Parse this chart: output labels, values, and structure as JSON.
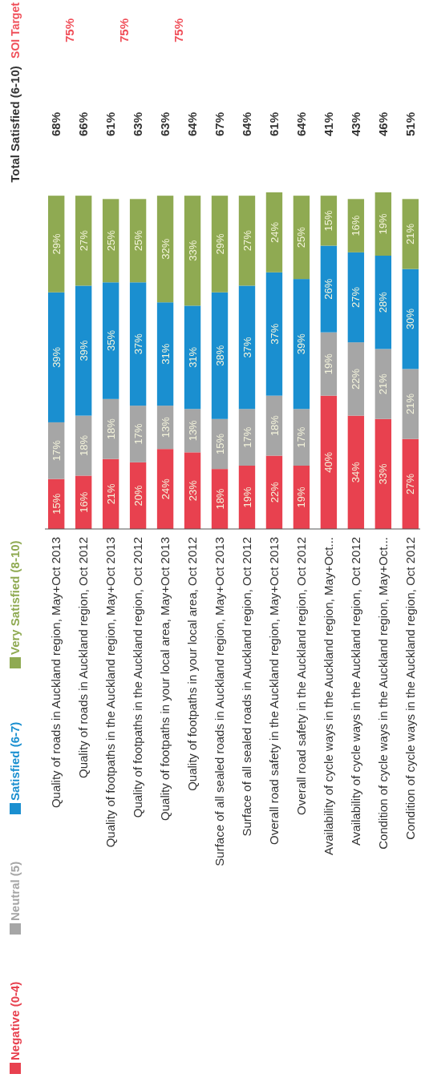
{
  "chart_data": {
    "type": "bar",
    "stacked": true,
    "legend": "left",
    "categories": [
      "Quality of roads in Auckland region, May+Oct 2013",
      "Quality of roads in Auckland region, Oct 2012",
      "Quality of footpaths in the Auckland region, May+Oct 2013",
      "Quality of footpaths in the Auckland region, Oct 2012",
      "Quality of footpaths in your local area, May+Oct 2013",
      "Quality of footpaths in your local area, Oct 2012",
      "Surface of all sealed roads in Auckland region, May+Oct 2013",
      "Surface of all sealed roads in Auckland region, Oct 2012",
      "Overall road safety in the Auckland region, May+Oct 2013",
      "Overall road safety in the Auckland region, Oct 2012",
      "Availability of cycle ways in the Auckland region, May+Oct...",
      "Availability of cycle ways in the Auckland region, Oct 2012",
      "Condition of cycle ways in the Auckland region, May+Oct...",
      "Condition of cycle ways in the Auckland region, Oct 2012"
    ],
    "series": [
      {
        "name": "Negative (0-4)",
        "color": "#e8414f",
        "values": [
          15,
          16,
          21,
          20,
          24,
          23,
          18,
          19,
          22,
          19,
          40,
          34,
          33,
          27
        ],
        "value_labels": [
          "15%",
          "16%",
          "21%",
          "20%",
          "24%",
          "23%",
          "18%",
          "19%",
          "22%",
          "19%",
          "40%",
          "34%",
          "33%",
          "27%"
        ]
      },
      {
        "name": "Neutral (5)",
        "color": "#a6a6a6",
        "values": [
          17,
          18,
          18,
          17,
          13,
          13,
          15,
          17,
          18,
          17,
          19,
          22,
          21,
          21
        ],
        "value_labels": [
          "17%",
          "18%",
          "18%",
          "17%",
          "13%",
          "13%",
          "15%",
          "17%",
          "18%",
          "17%",
          "19%",
          "22%",
          "21%",
          "21%"
        ]
      },
      {
        "name": "Satisfied (6-7)",
        "color": "#1a8fd0",
        "values": [
          39,
          39,
          35,
          37,
          31,
          31,
          38,
          37,
          37,
          39,
          26,
          27,
          28,
          30
        ],
        "value_labels": [
          "39%",
          "39%",
          "35%",
          "37%",
          "31%",
          "31%",
          "38%",
          "37%",
          "37%",
          "39%",
          "26%",
          "27%",
          "28%",
          "30%"
        ]
      },
      {
        "name": "Very Satisfied (8-10)",
        "color": "#8faa52",
        "values": [
          29,
          27,
          25,
          25,
          32,
          33,
          29,
          27,
          24,
          25,
          15,
          16,
          19,
          21
        ],
        "value_labels": [
          "29%",
          "27%",
          "25%",
          "25%",
          "32%",
          "33%",
          "29%",
          "27%",
          "24%",
          "25%",
          "15%",
          "16%",
          "19%",
          "21%"
        ]
      }
    ],
    "annotations": [
      "Total Satisfied (6-10)",
      "68%",
      "66%",
      "61%",
      "63%",
      "63%",
      "64%",
      "67%",
      "64%",
      "61%",
      "64%",
      "41%",
      "43%",
      "46%",
      "51%",
      "SOI Target",
      "75%",
      "75%",
      "75%"
    ]
  }
}
